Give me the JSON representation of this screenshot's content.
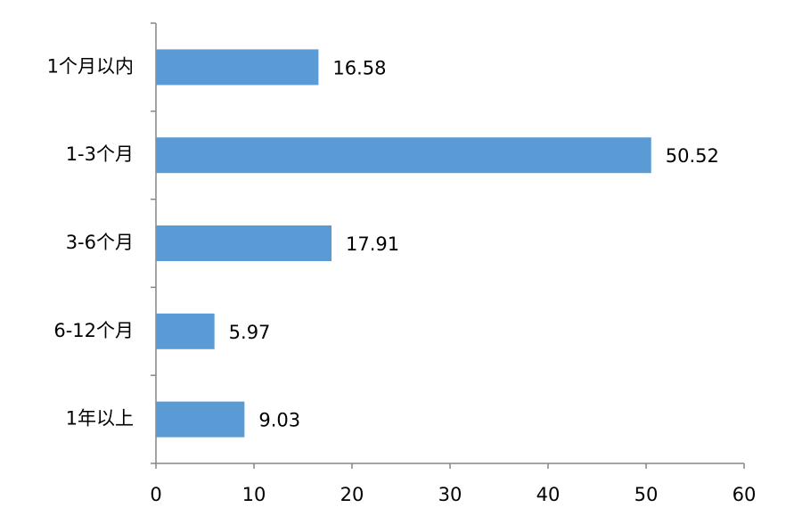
{
  "chart_data": {
    "type": "bar",
    "orientation": "horizontal",
    "categories": [
      "1个月以内",
      "1-3个月",
      "3-6个月",
      "6-12个月",
      "1年以上"
    ],
    "values": [
      16.58,
      50.52,
      17.91,
      5.97,
      9.03
    ],
    "color": "#5b9bd5",
    "xlim": [
      0,
      60
    ],
    "xticks": [
      0,
      10,
      20,
      30,
      40,
      50,
      60
    ],
    "grid": false
  }
}
